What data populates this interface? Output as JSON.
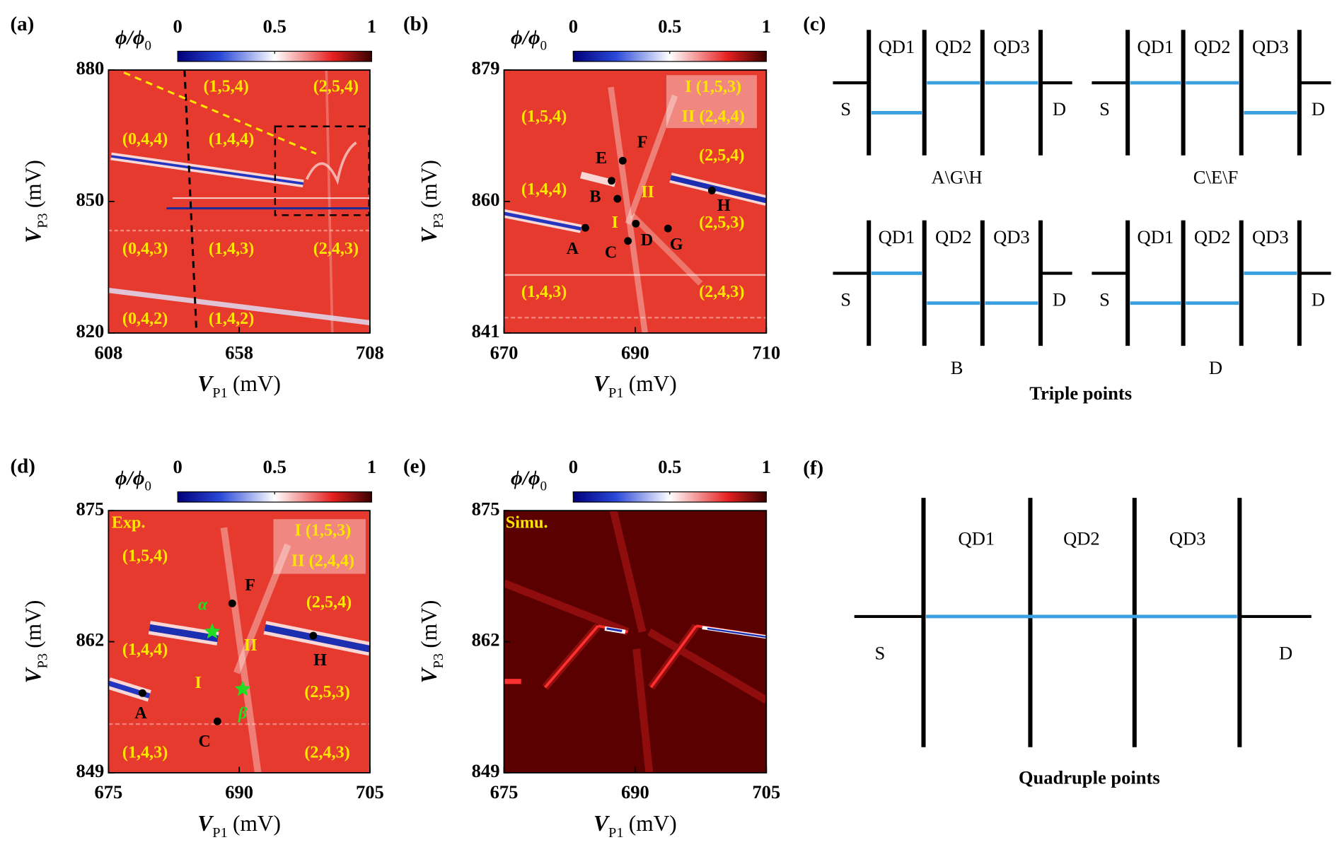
{
  "chart_data": [
    {
      "type": "heatmap",
      "panel_label": "(a)",
      "xlabel": {
        "symbol": "V",
        "sub": "P1",
        "unit": "(mV)"
      },
      "ylabel": {
        "symbol": "V",
        "sub": "P3",
        "unit": "(mV)"
      },
      "xlim": [
        608,
        708
      ],
      "xticks": [
        608,
        658,
        708
      ],
      "ylim": [
        820,
        880
      ],
      "yticks": [
        820,
        850,
        880
      ],
      "colorbar": {
        "label": {
          "symbol": "ϕ/ϕ",
          "sub": "0"
        },
        "lim": [
          0,
          1
        ],
        "ticks": [
          0,
          0.5,
          1
        ]
      },
      "annotation_color": "#ffe600",
      "annotations": [
        {
          "text": "(1,5,4)",
          "x": 653,
          "y": 876
        },
        {
          "text": "(2,5,4)",
          "x": 695,
          "y": 876
        },
        {
          "text": "(0,4,4)",
          "x": 622,
          "y": 864
        },
        {
          "text": "(1,4,4)",
          "x": 655,
          "y": 864
        },
        {
          "text": "(0,4,3)",
          "x": 622,
          "y": 839
        },
        {
          "text": "(1,4,3)",
          "x": 655,
          "y": 839
        },
        {
          "text": "(2,4,3)",
          "x": 695,
          "y": 839
        },
        {
          "text": "(0,4,2)",
          "x": 622,
          "y": 823
        },
        {
          "text": "(1,4,2)",
          "x": 655,
          "y": 823
        }
      ]
    },
    {
      "type": "heatmap",
      "panel_label": "(b)",
      "xlabel": {
        "symbol": "V",
        "sub": "P1",
        "unit": "(mV)"
      },
      "ylabel": {
        "symbol": "V",
        "sub": "P3",
        "unit": "(mV)"
      },
      "xlim": [
        670,
        710
      ],
      "xticks": [
        670,
        690,
        710
      ],
      "ylim": [
        841,
        879
      ],
      "yticks": [
        841,
        860,
        879
      ],
      "colorbar": {
        "label": {
          "symbol": "ϕ/ϕ",
          "sub": "0"
        },
        "lim": [
          0,
          1
        ],
        "ticks": [
          0,
          0.5,
          1
        ]
      },
      "annotation_color": "#ffe600",
      "annotations": [
        {
          "text": "I (1,5,3)",
          "x": 701.9,
          "y": 876.4
        },
        {
          "text": "II (2,4,4)",
          "x": 701.9,
          "y": 872.1
        },
        {
          "text": "(1,5,4)",
          "x": 676.1,
          "y": 872.1
        },
        {
          "text": "(2,5,4)",
          "x": 703.2,
          "y": 866.5
        },
        {
          "text": "(1,4,4)",
          "x": 676.1,
          "y": 861.6
        },
        {
          "text": "II",
          "x": 691.9,
          "y": 861.2
        },
        {
          "text": "I",
          "x": 686.9,
          "y": 856.8
        },
        {
          "text": "(2,5,3)",
          "x": 703.2,
          "y": 856.8
        },
        {
          "text": "(1,4,3)",
          "x": 676.1,
          "y": 846.8
        },
        {
          "text": "(2,4,3)",
          "x": 703.2,
          "y": 846.8
        }
      ],
      "point_color": "#000000",
      "points": [
        {
          "label": "A",
          "x": 682.4,
          "y": 856.2
        },
        {
          "label": "B",
          "x": 687.3,
          "y": 860.4
        },
        {
          "label": "C",
          "x": 688.9,
          "y": 854.3
        },
        {
          "label": "D",
          "x": 690.1,
          "y": 856.8
        },
        {
          "label": "E",
          "x": 686.4,
          "y": 863.0
        },
        {
          "label": "F",
          "x": 688.1,
          "y": 865.9
        },
        {
          "label": "G",
          "x": 695.0,
          "y": 856.1
        },
        {
          "label": "H",
          "x": 701.7,
          "y": 861.6
        }
      ]
    },
    {
      "type": "heatmap",
      "panel_label": "(d)",
      "xlabel": {
        "symbol": "V",
        "sub": "P1",
        "unit": "(mV)"
      },
      "ylabel": {
        "symbol": "V",
        "sub": "P3",
        "unit": "(mV)"
      },
      "xlim": [
        675,
        705
      ],
      "xticks": [
        675,
        690,
        705
      ],
      "ylim": [
        849,
        875
      ],
      "yticks": [
        849,
        862,
        875
      ],
      "colorbar": {
        "label": {
          "symbol": "ϕ/ϕ",
          "sub": "0"
        },
        "lim": [
          0,
          1
        ],
        "ticks": [
          0,
          0.5,
          1
        ]
      },
      "annotation_color": "#ffe600",
      "annotations": [
        {
          "text": "Exp.",
          "x": 677.3,
          "y": 873.7
        },
        {
          "text": "(1,5,4)",
          "x": 679.2,
          "y": 870.4
        },
        {
          "text": "I (1,5,3)",
          "x": 699.6,
          "y": 872.9
        },
        {
          "text": "II (2,4,4)",
          "x": 699.6,
          "y": 869.9
        },
        {
          "text": "(2,5,4)",
          "x": 700.3,
          "y": 865.8
        },
        {
          "text": "(1,4,4)",
          "x": 679.2,
          "y": 861.1
        },
        {
          "text": "II",
          "x": 691.3,
          "y": 861.5
        },
        {
          "text": "I",
          "x": 685.3,
          "y": 857.8
        },
        {
          "text": "(2,5,3)",
          "x": 700.1,
          "y": 856.9
        },
        {
          "text": "(1,4,3)",
          "x": 679.2,
          "y": 850.9
        },
        {
          "text": "(2,4,3)",
          "x": 700.1,
          "y": 850.9
        }
      ],
      "point_color": "#000000",
      "points": [
        {
          "label": "A",
          "x": 678.9,
          "y": 856.9
        },
        {
          "label": "C",
          "x": 687.5,
          "y": 854.1
        },
        {
          "label": "F",
          "x": 689.2,
          "y": 865.8
        },
        {
          "label": "H",
          "x": 698.5,
          "y": 862.6
        }
      ],
      "star_color": "#22dd22",
      "stars": [
        {
          "label": "α",
          "x": 686.9,
          "y": 863.0
        },
        {
          "label": "β",
          "x": 690.4,
          "y": 857.3
        }
      ]
    },
    {
      "type": "heatmap",
      "panel_label": "(e)",
      "xlabel": {
        "symbol": "V",
        "sub": "P1",
        "unit": "(mV)"
      },
      "ylabel": {
        "symbol": "V",
        "sub": "P3",
        "unit": "(mV)"
      },
      "xlim": [
        675,
        705
      ],
      "xticks": [
        675,
        690,
        705
      ],
      "ylim": [
        849,
        875
      ],
      "yticks": [
        849,
        862,
        875
      ],
      "colorbar": {
        "label": {
          "symbol": "ϕ/ϕ",
          "sub": "0"
        },
        "lim": [
          0,
          1
        ],
        "ticks": [
          0,
          0.5,
          1
        ]
      },
      "annotation_color": "#ffe600",
      "annotations": [
        {
          "text": "Simu.",
          "x": 677.6,
          "y": 873.7
        }
      ]
    }
  ],
  "diagrams": {
    "c": {
      "label": "(c)",
      "title": "Triple points",
      "schemes": [
        {
          "caption": "A\\G\\H",
          "dots": [
            "QD1",
            "QD2",
            "QD3"
          ],
          "source": "S",
          "drain": "D"
        },
        {
          "caption": "C\\E\\F",
          "dots": [
            "QD1",
            "QD2",
            "QD3"
          ],
          "source": "S",
          "drain": "D"
        },
        {
          "caption": "B",
          "dots": [
            "QD1",
            "QD2",
            "QD3"
          ],
          "source": "S",
          "drain": "D"
        },
        {
          "caption": "D",
          "dots": [
            "QD1",
            "QD2",
            "QD3"
          ],
          "source": "S",
          "drain": "D"
        }
      ]
    },
    "f": {
      "label": "(f)",
      "title": "Quadruple points",
      "dots": [
        "QD1",
        "QD2",
        "QD3"
      ],
      "source": "S",
      "drain": "D"
    }
  }
}
